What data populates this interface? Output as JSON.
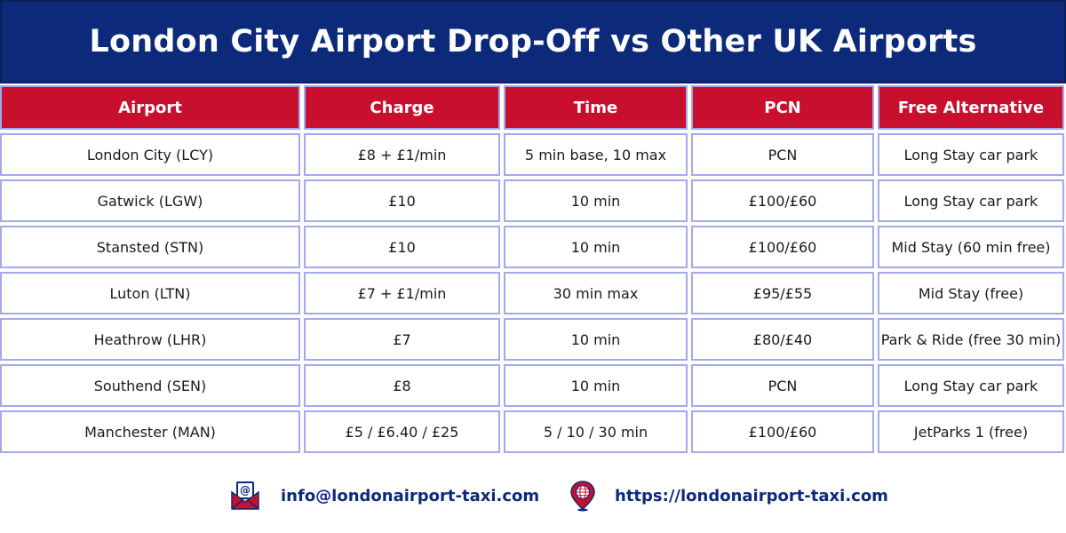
{
  "title": "London City Airport Drop-Off vs Other UK Airports",
  "columns": [
    "Airport",
    "Charge",
    "Time",
    "PCN",
    "Free Alternative"
  ],
  "rows": [
    [
      "London City (LCY)",
      "£8 + £1/min",
      "5 min base, 10 max",
      "PCN",
      "Long Stay car park"
    ],
    [
      "Gatwick (LGW)",
      "£10",
      "10 min",
      "£100/£60",
      "Long Stay car park"
    ],
    [
      "Stansted (STN)",
      "£10",
      "10 min",
      "£100/£60",
      "Mid Stay (60 min free)"
    ],
    [
      "Luton (LTN)",
      "£7 + £1/min",
      "30 min max",
      "£95/£55",
      "Mid Stay (free)"
    ],
    [
      "Heathrow (LHR)",
      "£7",
      "10 min",
      "£80/£40",
      "Park & Ride (free 30 min)"
    ],
    [
      "Southend (SEN)",
      "£8",
      "10 min",
      "PCN",
      "Long Stay car park"
    ],
    [
      "Manchester (MAN)",
      "£5 / £6.40 / £25",
      "5 / 10 / 30 min",
      "£100/£60",
      "JetParks 1 (free)"
    ]
  ],
  "footer": {
    "email": "info@londonairport-taxi.com",
    "website": "https://londonairport-taxi.com",
    "email_icon": "email-envelope-icon",
    "web_icon": "globe-location-pin-icon"
  },
  "colors": {
    "banner": "#0d2a7a",
    "header_cell": "#c8102e",
    "cell_border": "#a4a9ee",
    "footer_text": "#0d2a7a"
  }
}
